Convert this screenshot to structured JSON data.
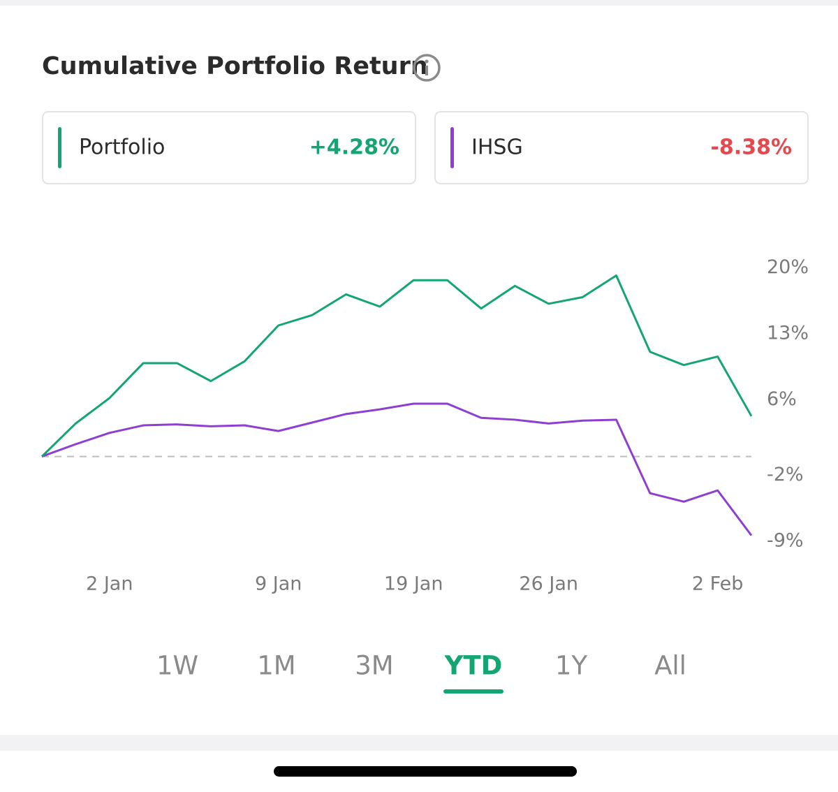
{
  "header": {
    "title": "Cumulative Portfolio Return"
  },
  "chart_data": {
    "type": "line",
    "categories": [
      null,
      null,
      "2 Jan",
      null,
      null,
      null,
      null,
      "9 Jan",
      null,
      null,
      null,
      "19 Jan",
      null,
      null,
      null,
      "26 Jan",
      null,
      null,
      null,
      null,
      "2 Feb",
      null
    ],
    "series": [
      {
        "name": "Portfolio",
        "color": "#13a672",
        "change_label": "+4.28%",
        "change_color": "#13a672",
        "values": [
          0,
          3.5,
          6.2,
          9.9,
          9.9,
          8.0,
          10.1,
          13.9,
          15.0,
          17.2,
          15.9,
          18.7,
          18.7,
          15.7,
          18.1,
          16.2,
          16.9,
          19.2,
          11.1,
          9.7,
          10.6,
          4.28
        ]
      },
      {
        "name": "IHSG",
        "color": "#8e3fd2",
        "change_label": "-8.38%",
        "change_color": "#e5484d",
        "values": [
          0,
          1.3,
          2.5,
          3.3,
          3.4,
          3.2,
          3.3,
          2.7,
          3.6,
          4.5,
          5.0,
          5.6,
          5.6,
          4.1,
          3.9,
          3.5,
          3.8,
          3.9,
          -3.9,
          -4.8,
          -3.6,
          -8.38
        ]
      }
    ],
    "ylim": [
      -11,
      22.2
    ],
    "yticks": [
      {
        "value": 20,
        "label": "20%"
      },
      {
        "value": 13,
        "label": "13%"
      },
      {
        "value": 6,
        "label": "6%"
      },
      {
        "value": -2,
        "label": "-2%"
      },
      {
        "value": -9,
        "label": "-9%"
      }
    ],
    "zero_line": true
  },
  "tabs": {
    "items": [
      "1W",
      "1M",
      "3M",
      "YTD",
      "1Y",
      "All"
    ],
    "active": "YTD"
  }
}
